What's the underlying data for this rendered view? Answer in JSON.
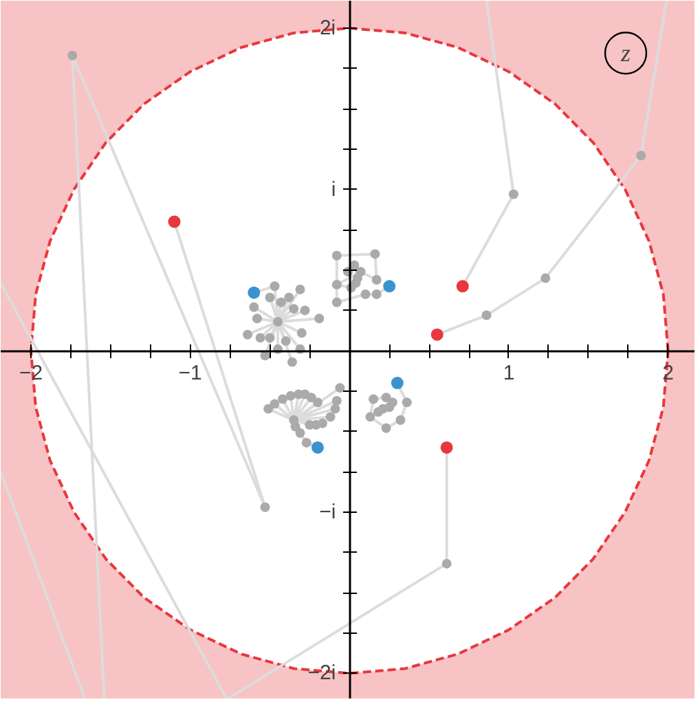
{
  "chart_data": {
    "type": "line",
    "annotations": [
      "z"
    ],
    "xlim": [
      -2.19,
      2.17
    ],
    "ylim": [
      -2.16,
      2.17
    ],
    "xticks": [
      {
        "value": -2,
        "label": "−2"
      },
      {
        "value": -1.75,
        "label": null
      },
      {
        "value": -1.5,
        "label": null
      },
      {
        "value": -1.25,
        "label": null
      },
      {
        "value": -1,
        "label": "−1"
      },
      {
        "value": -0.75,
        "label": null
      },
      {
        "value": -0.5,
        "label": null
      },
      {
        "value": -0.25,
        "label": null
      },
      {
        "value": 0.25,
        "label": null
      },
      {
        "value": 0.5,
        "label": null
      },
      {
        "value": 0.75,
        "label": null
      },
      {
        "value": 1,
        "label": "1"
      },
      {
        "value": 1.25,
        "label": null
      },
      {
        "value": 1.5,
        "label": null
      },
      {
        "value": 1.75,
        "label": null
      },
      {
        "value": 2,
        "label": "2"
      }
    ],
    "yticks": [
      {
        "value": -2,
        "label": "−2i"
      },
      {
        "value": -1.75,
        "label": null
      },
      {
        "value": -1.5,
        "label": null
      },
      {
        "value": -1.25,
        "label": null
      },
      {
        "value": -1,
        "label": "−i"
      },
      {
        "value": -0.75,
        "label": null
      },
      {
        "value": -0.5,
        "label": null
      },
      {
        "value": -0.25,
        "label": null
      },
      {
        "value": 0.25,
        "label": null
      },
      {
        "value": 0.5,
        "label": null
      },
      {
        "value": 0.75,
        "label": null
      },
      {
        "value": 1,
        "label": "i"
      },
      {
        "value": 1.25,
        "label": null
      },
      {
        "value": 1.5,
        "label": null
      },
      {
        "value": 1.75,
        "label": null
      },
      {
        "value": 2,
        "label": "2i"
      }
    ],
    "grid": false,
    "marker": "circle",
    "series": [
      {
        "type": "area",
        "color": "#e8383d",
        "marker": "none",
        "line_style": "dashed",
        "x": [
          2,
          1.97,
          1.88,
          1.73,
          1.53,
          1.29,
          1,
          0.68,
          0.35,
          0,
          -0.35,
          -0.68,
          -1,
          -1.29,
          -1.53,
          -1.73,
          -1.88,
          -1.97,
          -2,
          -1.97,
          -1.88,
          -1.73,
          -1.53,
          -1.29,
          -1,
          -0.68,
          -0.35,
          0,
          0.35,
          0.68,
          1,
          1.29,
          1.53,
          1.73,
          1.88,
          1.97,
          2
        ],
        "values": [
          0,
          0.35,
          0.68,
          1,
          1.29,
          1.53,
          1.73,
          1.88,
          1.97,
          2,
          1.97,
          1.88,
          1.73,
          1.53,
          1.29,
          1,
          0.68,
          0.35,
          0,
          -0.35,
          -0.68,
          -1,
          -1.29,
          -1.53,
          -1.73,
          -1.88,
          -1.97,
          -2,
          -1.97,
          -1.88,
          -1.73,
          -1.53,
          -1.29,
          -1,
          -0.68,
          -0.35,
          0
        ]
      },
      {
        "color": "#dcdcdc",
        "x": [
          0.71,
          1.03,
          0.86
        ],
        "values": [
          0.4,
          0.97,
          2.17
        ],
        "colors": [
          "#e8383d",
          "#aaaaaa",
          null
        ]
      },
      {
        "color": "#dcdcdc",
        "x": [
          0.55,
          0.86,
          1.23,
          1.83,
          1.99
        ],
        "values": [
          0.1,
          0.22,
          0.45,
          1.21,
          2.17
        ],
        "colors": [
          "#e8383d",
          "#aaaaaa",
          "#aaaaaa",
          "#aaaaaa",
          null
        ]
      },
      {
        "color": "#dcdcdc",
        "x": [
          0.61,
          0.61,
          -0.77,
          -2.19
        ],
        "values": [
          -0.6,
          -1.32,
          -2.16,
          0.42
        ],
        "colors": [
          "#e8383d",
          "#aaaaaa",
          null,
          null
        ]
      },
      {
        "color": "#dcdcdc",
        "x": [
          -1.1,
          -0.53,
          -1.74,
          -1.54
        ],
        "values": [
          0.8,
          -0.97,
          1.83,
          -2.16
        ],
        "colors": [
          "#e8383d",
          "#aaaaaa",
          "#aaaaaa",
          null
        ]
      },
      {
        "color": "#dcdcdc",
        "x": [
          -2.19,
          -1.66
        ],
        "values": [
          -0.75,
          -2.16
        ],
        "marker": "none"
      },
      {
        "color": "#dcdcdc",
        "x": [
          -0.6,
          -0.47,
          -0.45,
          -0.31,
          -0.45,
          -0.5,
          -0.45,
          -0.43,
          -0.45,
          -0.38,
          -0.45,
          -0.6,
          -0.45,
          -0.35,
          -0.45,
          -0.28,
          -0.45,
          -0.58,
          -0.45,
          -0.19,
          -0.45,
          -0.64,
          -0.45,
          -0.56,
          -0.45,
          -0.5,
          -0.45,
          -0.4,
          -0.45,
          -0.3,
          -0.45,
          -0.31,
          -0.45,
          -0.45,
          -0.45,
          -0.53,
          -0.45,
          -0.36
        ],
        "values": [
          0.36,
          0.4,
          0.18,
          0.38,
          0.18,
          0.33,
          0.18,
          0.3,
          0.18,
          0.33,
          0.18,
          0.27,
          0.18,
          0.26,
          0.18,
          0.25,
          0.18,
          0.2,
          0.18,
          0.2,
          0.18,
          0.1,
          0.18,
          0.08,
          0.18,
          0.08,
          0.18,
          0.06,
          0.18,
          0.11,
          0.18,
          0.01,
          0.18,
          0.01,
          0.18,
          -0.03,
          0.18,
          -0.07
        ],
        "colors": [
          "#3a93d0",
          "#aaaaaa",
          "#aaaaaa",
          "#aaaaaa",
          null,
          "#aaaaaa",
          null,
          "#aaaaaa",
          null,
          "#aaaaaa",
          null,
          "#aaaaaa",
          null,
          "#aaaaaa",
          null,
          "#aaaaaa",
          null,
          "#aaaaaa",
          null,
          "#aaaaaa",
          null,
          "#aaaaaa",
          null,
          "#aaaaaa",
          null,
          "#aaaaaa",
          null,
          "#aaaaaa",
          null,
          "#aaaaaa",
          null,
          "#aaaaaa",
          null,
          "#aaaaaa",
          null,
          "#aaaaaa",
          null,
          "#aaaaaa"
        ]
      },
      {
        "color": "#dcdcdc",
        "x": [
          0.25,
          0.17,
          0.1,
          -0.08,
          -0.08,
          0.16,
          0.17,
          0.07,
          -0.08,
          0.01,
          0.04,
          0.05,
          0.03,
          -0.01
        ],
        "values": [
          0.4,
          0.35,
          0.35,
          0.3,
          0.59,
          0.6,
          0.44,
          0.49,
          0.41,
          0.39,
          0.42,
          0.45,
          0.53,
          0.49
        ],
        "colors": [
          "#3a93d0",
          "#aaaaaa",
          "#aaaaaa",
          "#aaaaaa",
          "#aaaaaa",
          "#aaaaaa",
          "#aaaaaa",
          "#aaaaaa",
          "#aaaaaa",
          "#aaaaaa",
          "#aaaaaa",
          "#aaaaaa",
          "#aaaaaa",
          "#aaaaaa"
        ]
      },
      {
        "color": "#dcdcdc",
        "x": [
          -0.2,
          -0.27,
          -0.31,
          -0.34,
          -0.35,
          -0.51,
          -0.35,
          -0.47,
          -0.35,
          -0.42,
          -0.35,
          -0.37,
          -0.35,
          -0.32,
          -0.35,
          -0.28,
          -0.35,
          -0.24,
          -0.35,
          -0.2,
          -0.35,
          -0.06,
          -0.35,
          -0.08,
          -0.35,
          -0.09,
          -0.35,
          -0.12,
          -0.35,
          -0.17,
          -0.35,
          -0.21,
          -0.35,
          -0.25
        ],
        "values": [
          -0.6,
          -0.57,
          -0.51,
          -0.47,
          -0.43,
          -0.36,
          -0.43,
          -0.33,
          -0.43,
          -0.3,
          -0.43,
          -0.28,
          -0.43,
          -0.27,
          -0.43,
          -0.27,
          -0.43,
          -0.29,
          -0.43,
          -0.32,
          -0.43,
          -0.23,
          -0.43,
          -0.31,
          -0.43,
          -0.36,
          -0.43,
          -0.41,
          -0.43,
          -0.45,
          -0.43,
          -0.46,
          -0.43,
          -0.46
        ],
        "colors": [
          "#3a93d0",
          "#aaaaaa",
          "#aaaaaa",
          "#aaaaaa",
          "#aaaaaa",
          "#aaaaaa",
          null,
          "#aaaaaa",
          null,
          "#aaaaaa",
          null,
          "#aaaaaa",
          null,
          "#aaaaaa",
          null,
          "#aaaaaa",
          null,
          "#aaaaaa",
          null,
          "#aaaaaa",
          null,
          "#aaaaaa",
          null,
          "#aaaaaa",
          null,
          "#aaaaaa",
          null,
          "#aaaaaa",
          null,
          "#aaaaaa",
          null,
          "#aaaaaa",
          null,
          "#aaaaaa"
        ]
      },
      {
        "color": "#dcdcdc",
        "x": [
          0.3,
          0.36,
          0.32,
          0.23,
          0.13,
          0.15,
          0.23,
          0.27,
          0.25,
          0.21,
          0.18
        ],
        "values": [
          -0.2,
          -0.32,
          -0.43,
          -0.48,
          -0.41,
          -0.3,
          -0.29,
          -0.32,
          -0.35,
          -0.36,
          -0.38
        ],
        "colors": [
          "#3a93d0",
          "#aaaaaa",
          "#aaaaaa",
          "#aaaaaa",
          "#aaaaaa",
          "#aaaaaa",
          "#aaaaaa",
          "#aaaaaa",
          "#aaaaaa",
          "#aaaaaa",
          "#aaaaaa"
        ]
      }
    ]
  }
}
